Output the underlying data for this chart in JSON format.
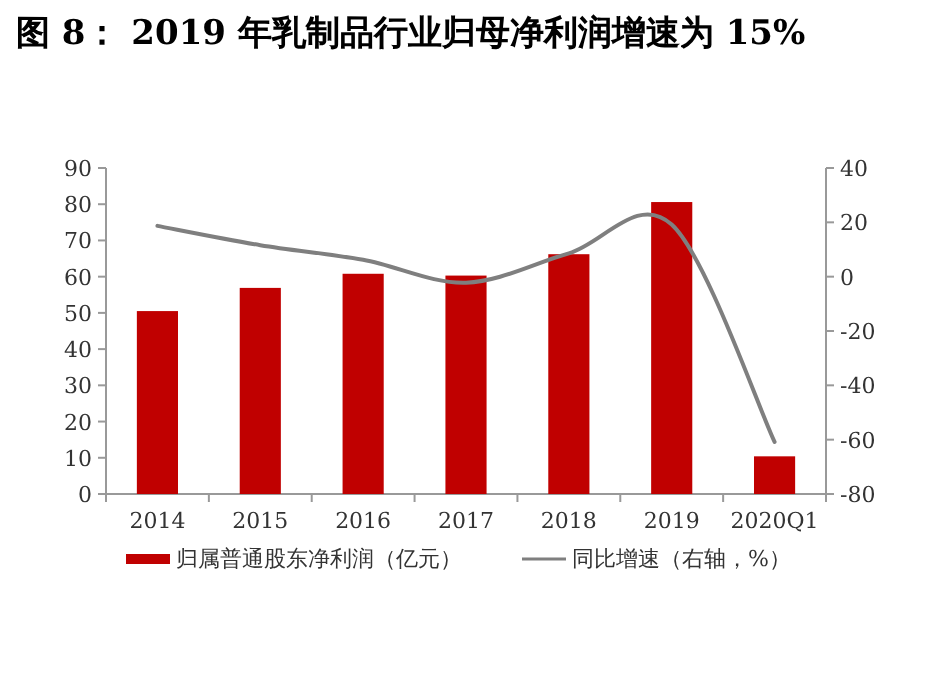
{
  "chart_data": {
    "type": "bar",
    "title": "图 8： 2019 年乳制品行业归母净利润增速为 15%",
    "categories": [
      "2014",
      "2015",
      "2016",
      "2017",
      "2018",
      "2019",
      "2020Q1"
    ],
    "series": [
      {
        "name": "归属普通股东净利润（亿元）",
        "color": "#c00000",
        "values": [
          50.5,
          56.9,
          60.8,
          60.3,
          66.2,
          80.6,
          10.4
        ]
      },
      {
        "name": "同比增速（右轴，%）",
        "type": "line",
        "axis": "y2",
        "color": "#7f7f7f",
        "values": [
          18.7,
          11.6,
          6.2,
          -2.2,
          8.6,
          19.2,
          -60.8
        ]
      }
    ],
    "ylim": [
      0,
      90
    ],
    "yticks": [
      0,
      10,
      20,
      30,
      40,
      50,
      60,
      70,
      80,
      90
    ],
    "y2lim": [
      -80,
      40
    ],
    "y2ticks": [
      -80,
      -60,
      -40,
      -20,
      0,
      20,
      40
    ],
    "grid": false,
    "legend": "bottom",
    "marker": "none",
    "line_style": "solid"
  }
}
